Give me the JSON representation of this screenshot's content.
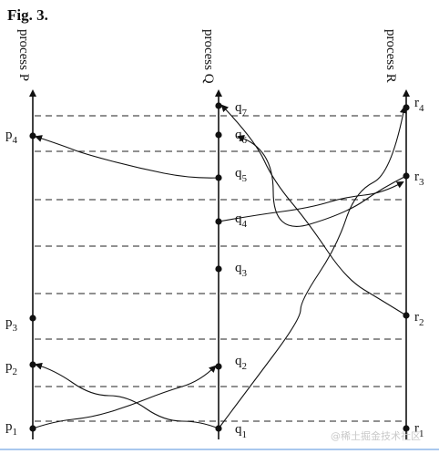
{
  "figure_title": "Fig. 3.",
  "processes": [
    {
      "id": "P",
      "label": "process P"
    },
    {
      "id": "Q",
      "label": "process Q"
    },
    {
      "id": "R",
      "label": "process R"
    }
  ],
  "events": {
    "P": [
      "p1",
      "p2",
      "p3",
      "p4"
    ],
    "Q": [
      "q1",
      "q2",
      "q3",
      "q4",
      "q5",
      "q6",
      "q7"
    ],
    "R": [
      "r1",
      "r2",
      "r3",
      "r4"
    ]
  },
  "watermark": "@稀土掘金技术社区",
  "colors": {
    "ink": "#111111",
    "dash": "#222222",
    "rule": "#a9c8ee"
  }
}
